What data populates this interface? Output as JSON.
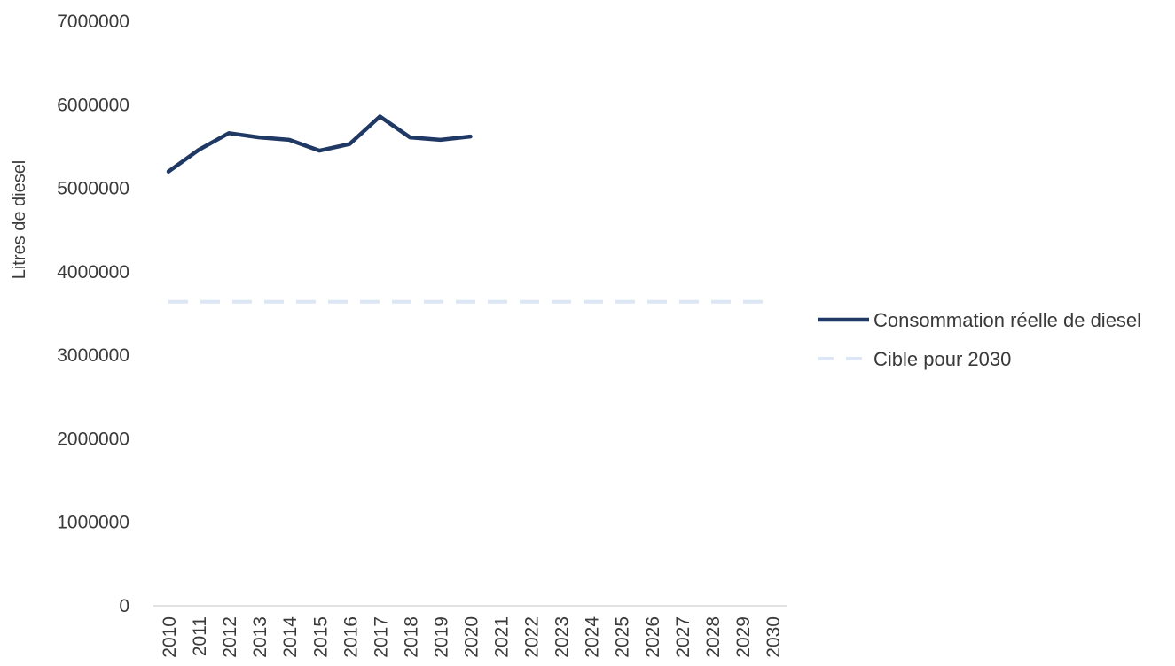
{
  "chart_data": {
    "type": "line",
    "title": "",
    "xlabel": "",
    "ylabel": "Litres de diesel",
    "ylim": [
      0,
      7000000
    ],
    "yticks": [
      "0",
      "1000000",
      "2000000",
      "3000000",
      "4000000",
      "5000000",
      "6000000",
      "7000000"
    ],
    "categories": [
      "2010",
      "2011",
      "2012",
      "2013",
      "2014",
      "2015",
      "2016",
      "2017",
      "2018",
      "2019",
      "2020",
      "2021",
      "2022",
      "2023",
      "2024",
      "2025",
      "2026",
      "2027",
      "2028",
      "2029",
      "2030"
    ],
    "grid": false,
    "legend_position": "right",
    "series": [
      {
        "name": "Consommation réelle de diesel",
        "color": "#1f3864",
        "style": "solid",
        "values": [
          5200000,
          5460000,
          5660000,
          5610000,
          5580000,
          5450000,
          5530000,
          5860000,
          5610000,
          5580000,
          5620000,
          null,
          null,
          null,
          null,
          null,
          null,
          null,
          null,
          null,
          null
        ]
      },
      {
        "name": "Cible pour 2030",
        "color": "#dce6f4",
        "style": "dashed",
        "values": [
          3640000,
          3640000,
          3640000,
          3640000,
          3640000,
          3640000,
          3640000,
          3640000,
          3640000,
          3640000,
          3640000,
          3640000,
          3640000,
          3640000,
          3640000,
          3640000,
          3640000,
          3640000,
          3640000,
          3640000,
          3640000
        ]
      }
    ]
  }
}
